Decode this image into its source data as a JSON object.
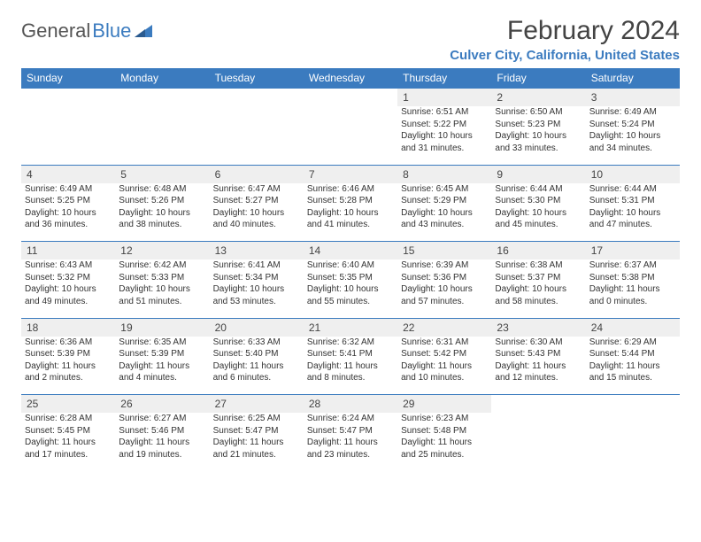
{
  "brand": {
    "part1": "General",
    "part2": "Blue"
  },
  "title": "February 2024",
  "location": "Culver City, California, United States",
  "colors": {
    "accent": "#3b7bbf",
    "header_text": "#ffffff",
    "daynum_bg": "#efefef",
    "text": "#333333",
    "background": "#ffffff"
  },
  "dow": [
    "Sunday",
    "Monday",
    "Tuesday",
    "Wednesday",
    "Thursday",
    "Friday",
    "Saturday"
  ],
  "weeks": [
    [
      null,
      null,
      null,
      null,
      {
        "n": "1",
        "sr": "Sunrise: 6:51 AM",
        "ss": "Sunset: 5:22 PM",
        "dl1": "Daylight: 10 hours",
        "dl2": "and 31 minutes."
      },
      {
        "n": "2",
        "sr": "Sunrise: 6:50 AM",
        "ss": "Sunset: 5:23 PM",
        "dl1": "Daylight: 10 hours",
        "dl2": "and 33 minutes."
      },
      {
        "n": "3",
        "sr": "Sunrise: 6:49 AM",
        "ss": "Sunset: 5:24 PM",
        "dl1": "Daylight: 10 hours",
        "dl2": "and 34 minutes."
      }
    ],
    [
      {
        "n": "4",
        "sr": "Sunrise: 6:49 AM",
        "ss": "Sunset: 5:25 PM",
        "dl1": "Daylight: 10 hours",
        "dl2": "and 36 minutes."
      },
      {
        "n": "5",
        "sr": "Sunrise: 6:48 AM",
        "ss": "Sunset: 5:26 PM",
        "dl1": "Daylight: 10 hours",
        "dl2": "and 38 minutes."
      },
      {
        "n": "6",
        "sr": "Sunrise: 6:47 AM",
        "ss": "Sunset: 5:27 PM",
        "dl1": "Daylight: 10 hours",
        "dl2": "and 40 minutes."
      },
      {
        "n": "7",
        "sr": "Sunrise: 6:46 AM",
        "ss": "Sunset: 5:28 PM",
        "dl1": "Daylight: 10 hours",
        "dl2": "and 41 minutes."
      },
      {
        "n": "8",
        "sr": "Sunrise: 6:45 AM",
        "ss": "Sunset: 5:29 PM",
        "dl1": "Daylight: 10 hours",
        "dl2": "and 43 minutes."
      },
      {
        "n": "9",
        "sr": "Sunrise: 6:44 AM",
        "ss": "Sunset: 5:30 PM",
        "dl1": "Daylight: 10 hours",
        "dl2": "and 45 minutes."
      },
      {
        "n": "10",
        "sr": "Sunrise: 6:44 AM",
        "ss": "Sunset: 5:31 PM",
        "dl1": "Daylight: 10 hours",
        "dl2": "and 47 minutes."
      }
    ],
    [
      {
        "n": "11",
        "sr": "Sunrise: 6:43 AM",
        "ss": "Sunset: 5:32 PM",
        "dl1": "Daylight: 10 hours",
        "dl2": "and 49 minutes."
      },
      {
        "n": "12",
        "sr": "Sunrise: 6:42 AM",
        "ss": "Sunset: 5:33 PM",
        "dl1": "Daylight: 10 hours",
        "dl2": "and 51 minutes."
      },
      {
        "n": "13",
        "sr": "Sunrise: 6:41 AM",
        "ss": "Sunset: 5:34 PM",
        "dl1": "Daylight: 10 hours",
        "dl2": "and 53 minutes."
      },
      {
        "n": "14",
        "sr": "Sunrise: 6:40 AM",
        "ss": "Sunset: 5:35 PM",
        "dl1": "Daylight: 10 hours",
        "dl2": "and 55 minutes."
      },
      {
        "n": "15",
        "sr": "Sunrise: 6:39 AM",
        "ss": "Sunset: 5:36 PM",
        "dl1": "Daylight: 10 hours",
        "dl2": "and 57 minutes."
      },
      {
        "n": "16",
        "sr": "Sunrise: 6:38 AM",
        "ss": "Sunset: 5:37 PM",
        "dl1": "Daylight: 10 hours",
        "dl2": "and 58 minutes."
      },
      {
        "n": "17",
        "sr": "Sunrise: 6:37 AM",
        "ss": "Sunset: 5:38 PM",
        "dl1": "Daylight: 11 hours",
        "dl2": "and 0 minutes."
      }
    ],
    [
      {
        "n": "18",
        "sr": "Sunrise: 6:36 AM",
        "ss": "Sunset: 5:39 PM",
        "dl1": "Daylight: 11 hours",
        "dl2": "and 2 minutes."
      },
      {
        "n": "19",
        "sr": "Sunrise: 6:35 AM",
        "ss": "Sunset: 5:39 PM",
        "dl1": "Daylight: 11 hours",
        "dl2": "and 4 minutes."
      },
      {
        "n": "20",
        "sr": "Sunrise: 6:33 AM",
        "ss": "Sunset: 5:40 PM",
        "dl1": "Daylight: 11 hours",
        "dl2": "and 6 minutes."
      },
      {
        "n": "21",
        "sr": "Sunrise: 6:32 AM",
        "ss": "Sunset: 5:41 PM",
        "dl1": "Daylight: 11 hours",
        "dl2": "and 8 minutes."
      },
      {
        "n": "22",
        "sr": "Sunrise: 6:31 AM",
        "ss": "Sunset: 5:42 PM",
        "dl1": "Daylight: 11 hours",
        "dl2": "and 10 minutes."
      },
      {
        "n": "23",
        "sr": "Sunrise: 6:30 AM",
        "ss": "Sunset: 5:43 PM",
        "dl1": "Daylight: 11 hours",
        "dl2": "and 12 minutes."
      },
      {
        "n": "24",
        "sr": "Sunrise: 6:29 AM",
        "ss": "Sunset: 5:44 PM",
        "dl1": "Daylight: 11 hours",
        "dl2": "and 15 minutes."
      }
    ],
    [
      {
        "n": "25",
        "sr": "Sunrise: 6:28 AM",
        "ss": "Sunset: 5:45 PM",
        "dl1": "Daylight: 11 hours",
        "dl2": "and 17 minutes."
      },
      {
        "n": "26",
        "sr": "Sunrise: 6:27 AM",
        "ss": "Sunset: 5:46 PM",
        "dl1": "Daylight: 11 hours",
        "dl2": "and 19 minutes."
      },
      {
        "n": "27",
        "sr": "Sunrise: 6:25 AM",
        "ss": "Sunset: 5:47 PM",
        "dl1": "Daylight: 11 hours",
        "dl2": "and 21 minutes."
      },
      {
        "n": "28",
        "sr": "Sunrise: 6:24 AM",
        "ss": "Sunset: 5:47 PM",
        "dl1": "Daylight: 11 hours",
        "dl2": "and 23 minutes."
      },
      {
        "n": "29",
        "sr": "Sunrise: 6:23 AM",
        "ss": "Sunset: 5:48 PM",
        "dl1": "Daylight: 11 hours",
        "dl2": "and 25 minutes."
      },
      null,
      null
    ]
  ]
}
